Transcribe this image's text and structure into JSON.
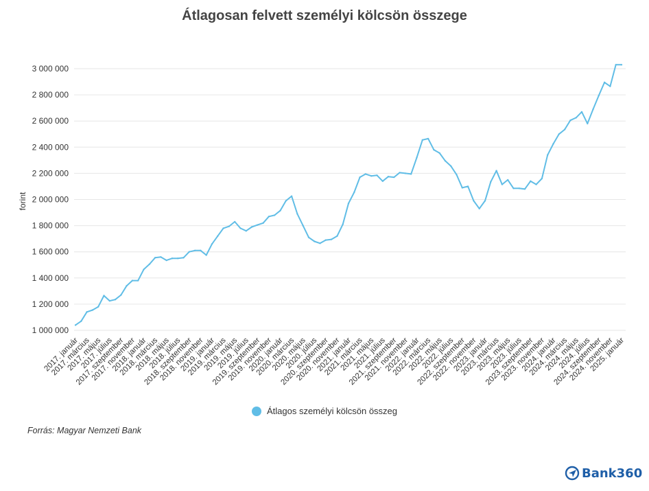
{
  "colors": {
    "series": "#60bde6",
    "brand": "#1f5fa8",
    "grid": "#e6e6e6"
  },
  "footer": {
    "source": "Forrás: Magyar Nemzeti Bank",
    "logo_text": "Bank360",
    "logo_icon": "plane-icon"
  },
  "chart_data": {
    "type": "line",
    "title": "Átlagosan felvett személyi kölcsön összege",
    "ylabel": "forint",
    "xlabel": "",
    "ylim": [
      1000000,
      3000000
    ],
    "yticks": [
      1000000,
      1200000,
      1400000,
      1600000,
      1800000,
      2000000,
      2200000,
      2400000,
      2600000,
      2800000,
      3000000
    ],
    "ytick_labels": [
      "1 000 000",
      "1 200 000",
      "1 400 000",
      "1 600 000",
      "1 800 000",
      "2 000 000",
      "2 200 000",
      "2 400 000",
      "2 600 000",
      "2 800 000",
      "3 000 000"
    ],
    "grid": true,
    "legend_position": "bottom",
    "x": [
      "2017. január",
      "2017. február",
      "2017. március",
      "2017. április",
      "2017. május",
      "2017. június",
      "2017. július",
      "2017. augusztus",
      "2017. szeptember",
      "2017. október",
      "2017. november",
      "2017. december",
      "2018. január",
      "2018. február",
      "2018. március",
      "2018. április",
      "2018. május",
      "2018. június",
      "2018. július",
      "2018. augusztus",
      "2018. szeptember",
      "2018. október",
      "2018. november",
      "2018. december",
      "2019. január",
      "2019. február",
      "2019. március",
      "2019. április",
      "2019. május",
      "2019. június",
      "2019. július",
      "2019. augusztus",
      "2019. szeptember",
      "2019. október",
      "2019. november",
      "2019. december",
      "2020. január",
      "2020. február",
      "2020. március",
      "2020. április",
      "2020. május",
      "2020. június",
      "2020. július",
      "2020. augusztus",
      "2020. szeptember",
      "2020. október",
      "2020. november",
      "2020. december",
      "2021. január",
      "2021. február",
      "2021. március",
      "2021. április",
      "2021. május",
      "2021. június",
      "2021. július",
      "2021. augusztus",
      "2021. szeptember",
      "2021. október",
      "2021. november",
      "2021. december",
      "2022. január",
      "2022. február",
      "2022. március",
      "2022. április",
      "2022. május",
      "2022. június",
      "2022. július",
      "2022. augusztus",
      "2022. szeptember",
      "2022. október",
      "2022. november",
      "2022. december",
      "2023. január",
      "2023. február",
      "2023. március",
      "2023. április",
      "2023. május",
      "2023. június",
      "2023. július",
      "2023. augusztus",
      "2023. szeptember",
      "2023. október",
      "2023. november",
      "2023. december",
      "2024. január",
      "2024. február",
      "2024. március",
      "2024. április",
      "2024. május",
      "2024. június",
      "2024. július",
      "2024. augusztus",
      "2024. szeptember",
      "2024. október",
      "2024. november",
      "2024. december",
      "2025. január"
    ],
    "visible_tick_labels": [
      "2017. január",
      "2017. március",
      "2017. május",
      "2017. július",
      "2017. szeptember",
      "2017. november",
      "2018. január",
      "2018. március",
      "2018. május",
      "2018. július",
      "2018. szeptember",
      "2018. november",
      "2019. január",
      "2019. március",
      "2019. május",
      "2019. július",
      "2019. szeptember",
      "2019. november",
      "2020. január",
      "2020. március",
      "2020. május",
      "2020. július",
      "2020. szeptember",
      "2020. november",
      "2021. január",
      "2021. március",
      "2021. május",
      "2021. július",
      "2021. szeptember",
      "2021. november",
      "2022. január",
      "2022. március",
      "2022. május",
      "2022. július",
      "2022. szeptember",
      "2022. november",
      "2023. január",
      "2023. március",
      "2023. május",
      "2023. július",
      "2023. szeptember",
      "2023. november",
      "2024. január",
      "2024. március",
      "2024. május",
      "2024. július",
      "2024. szeptember",
      "2024. november",
      "2025. január"
    ],
    "series": [
      {
        "name": "Átlagos személyi kölcsön összeg",
        "values": [
          1040000,
          1070000,
          1140000,
          1155000,
          1180000,
          1265000,
          1225000,
          1235000,
          1270000,
          1340000,
          1380000,
          1380000,
          1465000,
          1505000,
          1555000,
          1560000,
          1535000,
          1550000,
          1550000,
          1555000,
          1600000,
          1610000,
          1610000,
          1575000,
          1660000,
          1720000,
          1780000,
          1795000,
          1830000,
          1780000,
          1760000,
          1790000,
          1805000,
          1820000,
          1870000,
          1880000,
          1915000,
          1990000,
          2025000,
          1890000,
          1800000,
          1710000,
          1680000,
          1665000,
          1690000,
          1695000,
          1720000,
          1810000,
          1970000,
          2055000,
          2170000,
          2195000,
          2180000,
          2185000,
          2140000,
          2175000,
          2170000,
          2205000,
          2200000,
          2195000,
          2320000,
          2455000,
          2465000,
          2380000,
          2355000,
          2295000,
          2255000,
          2190000,
          2090000,
          2100000,
          1990000,
          1930000,
          1990000,
          2135000,
          2220000,
          2115000,
          2150000,
          2085000,
          2085000,
          2080000,
          2140000,
          2115000,
          2160000,
          2340000,
          2425000,
          2500000,
          2535000,
          2605000,
          2625000,
          2670000,
          2580000,
          2690000,
          2795000,
          2895000,
          2865000,
          3030000,
          3030000
        ]
      }
    ]
  }
}
